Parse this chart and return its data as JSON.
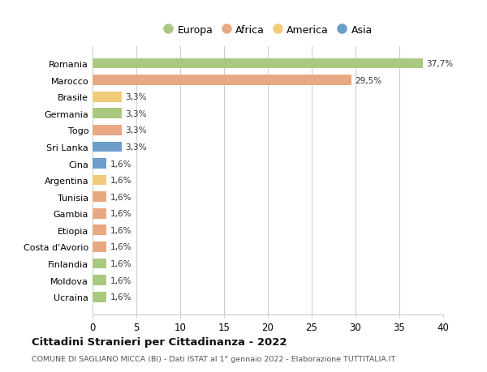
{
  "countries": [
    "Romania",
    "Marocco",
    "Brasile",
    "Germania",
    "Togo",
    "Sri Lanka",
    "Cina",
    "Argentina",
    "Tunisia",
    "Gambia",
    "Etiopia",
    "Costa d'Avorio",
    "Finlandia",
    "Moldova",
    "Ucraina"
  ],
  "values": [
    37.7,
    29.5,
    3.3,
    3.3,
    3.3,
    3.3,
    1.6,
    1.6,
    1.6,
    1.6,
    1.6,
    1.6,
    1.6,
    1.6,
    1.6
  ],
  "labels": [
    "37,7%",
    "29,5%",
    "3,3%",
    "3,3%",
    "3,3%",
    "3,3%",
    "1,6%",
    "1,6%",
    "1,6%",
    "1,6%",
    "1,6%",
    "1,6%",
    "1,6%",
    "1,6%",
    "1,6%"
  ],
  "continents": [
    "Europa",
    "Africa",
    "America",
    "Europa",
    "Africa",
    "Asia",
    "Asia",
    "America",
    "Africa",
    "Africa",
    "Africa",
    "Africa",
    "Europa",
    "Europa",
    "Europa"
  ],
  "colors": {
    "Europa": "#a8c97f",
    "Africa": "#e8a882",
    "America": "#f0cc7a",
    "Asia": "#6b9ec8"
  },
  "legend_order": [
    "Europa",
    "Africa",
    "America",
    "Asia"
  ],
  "title": "Cittadini Stranieri per Cittadinanza - 2022",
  "subtitle": "COMUNE DI SAGLIANO MICCA (BI) - Dati ISTAT al 1° gennaio 2022 - Elaborazione TUTTITALIA.IT",
  "xlim": [
    0,
    40
  ],
  "xticks": [
    0,
    5,
    10,
    15,
    20,
    25,
    30,
    35,
    40
  ],
  "bg_color": "#ffffff",
  "grid_color": "#cccccc"
}
